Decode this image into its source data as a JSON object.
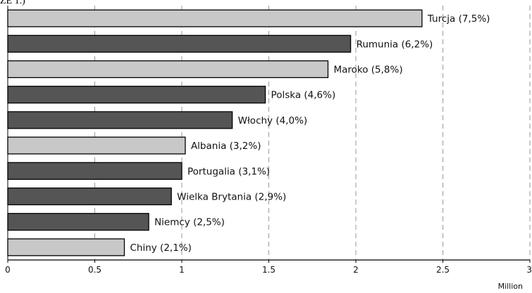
{
  "header_fragment": "ZE 1.)",
  "chart_data": {
    "type": "bar",
    "orientation": "horizontal",
    "categories": [
      "Turcja",
      "Rumunia",
      "Maroko",
      "Polska",
      "Włochy",
      "Albania",
      "Portugalia",
      "Wielka Brytania",
      "Niemcy",
      "Chiny"
    ],
    "bar_labels": [
      "Turcja (7,5%)",
      "Rumunia (6,2%)",
      "Maroko (5,8%)",
      "Polska (4,6%)",
      "Włochy (4,0%)",
      "Albania (3,2%)",
      "Portugalia (3,1%)",
      "Wielka Brytania (2,9%)",
      "Niemcy (2,5%)",
      "Chiny (2,1%)"
    ],
    "values": [
      2.38,
      1.97,
      1.84,
      1.48,
      1.29,
      1.02,
      1.0,
      0.94,
      0.81,
      0.67
    ],
    "bar_colors": [
      "#c8c8c8",
      "#555555",
      "#c8c8c8",
      "#555555",
      "#555555",
      "#c8c8c8",
      "#555555",
      "#555555",
      "#555555",
      "#c8c8c8"
    ],
    "xlim": [
      0,
      3
    ],
    "xticks": [
      0,
      0.5,
      1,
      1.5,
      2,
      2.5,
      3
    ],
    "xtick_labels": [
      "0",
      "0.5",
      "1",
      "1.5",
      "2",
      "2.5",
      "3"
    ],
    "xunit_label": "Million",
    "grid": "vertical dashed",
    "title": "",
    "xlabel": "",
    "ylabel": ""
  }
}
